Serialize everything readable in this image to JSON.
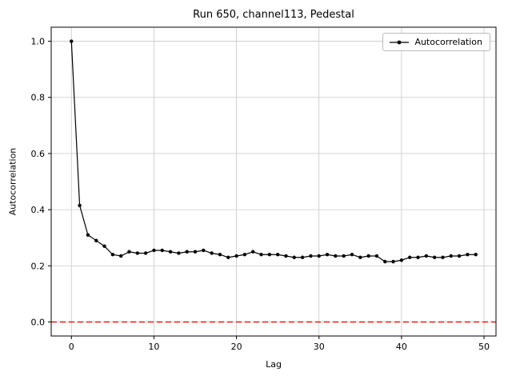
{
  "chart_data": {
    "type": "line",
    "title": "Run 650, channel113, Pedestal",
    "xlabel": "Lag",
    "ylabel": "Autocorrelation",
    "legend": [
      "Autocorrelation"
    ],
    "legend_position": "upper right",
    "grid": true,
    "line_color": "#000000",
    "marker": "o",
    "zero_line": {
      "y": 0,
      "color": "#ff0000",
      "style": "dashed"
    },
    "xlim": [
      -2.45,
      51.45
    ],
    "ylim": [
      -0.05,
      1.05
    ],
    "xticks": [
      0,
      10,
      20,
      30,
      40,
      50
    ],
    "yticks": [
      0.0,
      0.2,
      0.4,
      0.6,
      0.8,
      1.0
    ],
    "x": [
      0,
      1,
      2,
      3,
      4,
      5,
      6,
      7,
      8,
      9,
      10,
      11,
      12,
      13,
      14,
      15,
      16,
      17,
      18,
      19,
      20,
      21,
      22,
      23,
      24,
      25,
      26,
      27,
      28,
      29,
      30,
      31,
      32,
      33,
      34,
      35,
      36,
      37,
      38,
      39,
      40,
      41,
      42,
      43,
      44,
      45,
      46,
      47,
      48,
      49
    ],
    "y": [
      1.0,
      0.415,
      0.31,
      0.29,
      0.27,
      0.24,
      0.235,
      0.25,
      0.245,
      0.245,
      0.255,
      0.255,
      0.25,
      0.245,
      0.25,
      0.25,
      0.255,
      0.245,
      0.24,
      0.23,
      0.235,
      0.24,
      0.25,
      0.24,
      0.24,
      0.24,
      0.235,
      0.23,
      0.23,
      0.235,
      0.235,
      0.24,
      0.235,
      0.235,
      0.24,
      0.23,
      0.235,
      0.235,
      0.215,
      0.215,
      0.22,
      0.23,
      0.23,
      0.235,
      0.23,
      0.23,
      0.235,
      0.235,
      0.24,
      0.24
    ]
  }
}
